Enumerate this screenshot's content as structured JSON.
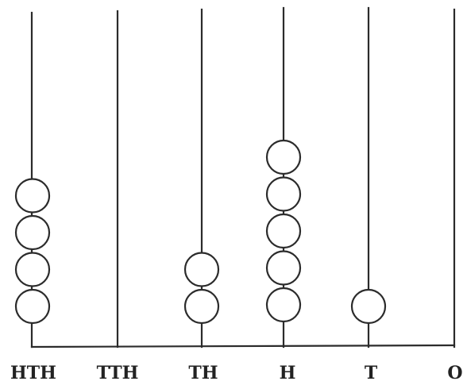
{
  "abacus": {
    "columns": [
      {
        "label": "HTH",
        "beads": 4
      },
      {
        "label": "TTH",
        "beads": 0
      },
      {
        "label": "TH",
        "beads": 2
      },
      {
        "label": "H",
        "beads": 5
      },
      {
        "label": "T",
        "beads": 1
      },
      {
        "label": "O",
        "beads": 0
      }
    ]
  }
}
